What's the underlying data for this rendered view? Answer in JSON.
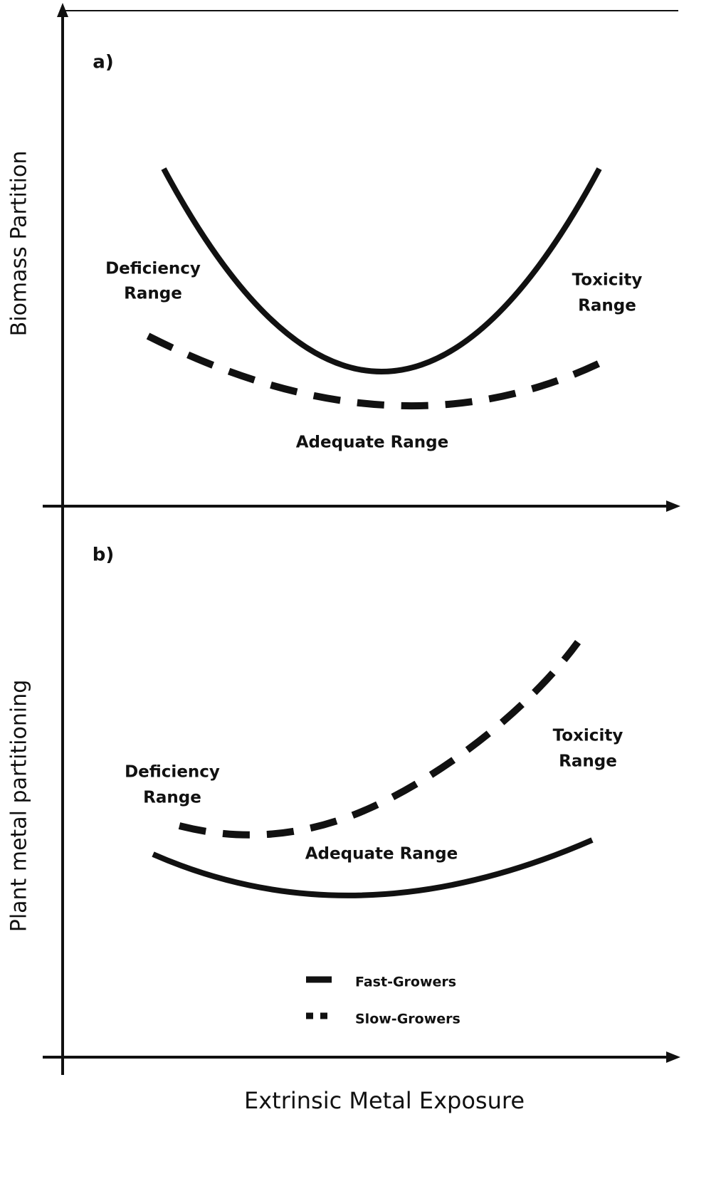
{
  "panels": [
    {
      "label": "a)",
      "y_axis_label": "Biomass Partition",
      "deficiency": [
        "Deficiency",
        "Range"
      ],
      "toxicity": [
        "Toxicity",
        "Range"
      ],
      "adequate": "Adequate Range"
    },
    {
      "label": "b)",
      "y_axis_label": "Plant metal partitioning",
      "deficiency": [
        "Deficiency",
        "Range"
      ],
      "toxicity": [
        "Toxicity",
        "Range"
      ],
      "adequate": "Adequate Range"
    }
  ],
  "x_axis_label": "Extrinsic Metal Exposure",
  "legend": [
    "Fast-Growers",
    "Slow-Growers"
  ]
}
